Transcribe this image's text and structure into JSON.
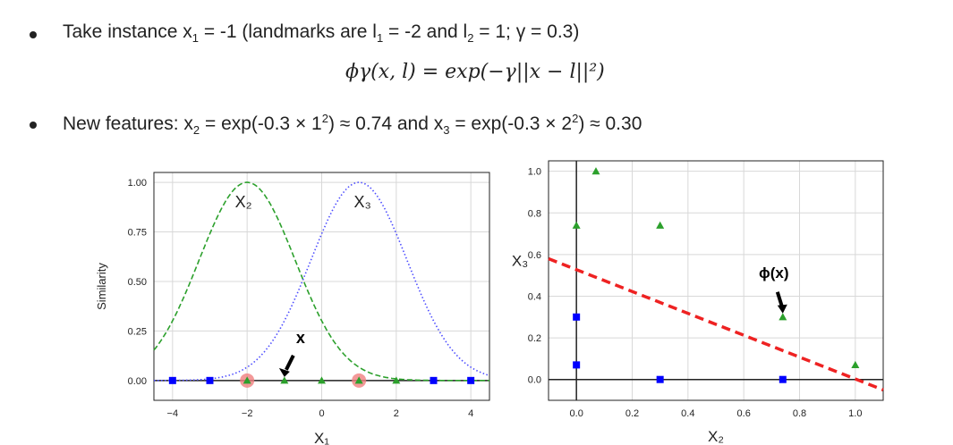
{
  "bullet1": {
    "t1": "Take instance x",
    "s1": "1",
    "t2": " = -1 (landmarks are l",
    "s2": "1",
    "t3": " = -2 and l",
    "s3": "2",
    "t4": " = 1; γ = 0.3)"
  },
  "formula": "ϕγ(x, l) = exp(−γ||x − l||²)",
  "bullet2": {
    "t1": "New features: x",
    "s1": "2",
    "t2": " = exp(-0.3 × 1",
    "p1": "2",
    "t3": ") ≈ 0.74 and x",
    "s2": "3",
    "t4": " = exp(-0.3 × 2",
    "p2": "2",
    "t5": ") ≈ 0.30"
  },
  "chart_data": [
    {
      "type": "line",
      "xlabel": "X₁",
      "ylabel": "Similarity",
      "xlim": [
        -4.5,
        4.5
      ],
      "ylim": [
        -0.1,
        1.05
      ],
      "xticks": [
        -4,
        -2,
        0,
        2,
        4
      ],
      "yticks": [
        0.0,
        0.25,
        0.5,
        0.75,
        1.0
      ],
      "grid": true,
      "gamma": 0.3,
      "series": [
        {
          "name": "X₂",
          "landmark": -2,
          "style": "dashed",
          "color": "#2ca02c"
        },
        {
          "name": "X₃",
          "landmark": 1,
          "style": "dotted",
          "color": "#4d4dff"
        }
      ],
      "points_square": [
        -4,
        -3,
        3,
        4
      ],
      "points_triangle": [
        -2,
        -1,
        0,
        1,
        2
      ],
      "landmarks": [
        -2,
        1
      ],
      "annotation": {
        "text": "x",
        "point": [
          -1,
          0
        ]
      }
    },
    {
      "type": "scatter",
      "xlabel": "X₂",
      "ylabel": "X₃",
      "xlim": [
        -0.1,
        1.1
      ],
      "ylim": [
        -0.1,
        1.05
      ],
      "xticks": [
        0.0,
        0.2,
        0.4,
        0.6,
        0.8,
        1.0
      ],
      "yticks": [
        0.0,
        0.2,
        0.4,
        0.6,
        0.8,
        1.0
      ],
      "grid": true,
      "squares": [
        [
          0.0,
          0.3
        ],
        [
          0.0,
          0.07
        ],
        [
          0.3,
          0.0
        ],
        [
          0.74,
          0.0
        ]
      ],
      "triangles": [
        [
          0.07,
          1.0
        ],
        [
          0.0,
          0.74
        ],
        [
          0.3,
          0.74
        ],
        [
          0.74,
          0.3
        ],
        [
          1.0,
          0.07
        ]
      ],
      "decision_line": [
        [
          -0.1,
          0.58
        ],
        [
          1.1,
          -0.05
        ]
      ],
      "annotation": {
        "text": "ϕ(x)",
        "point": [
          0.74,
          0.3
        ]
      }
    }
  ],
  "colors": {
    "green": "#2ca02c",
    "blue": "#0000ff",
    "red": "#ee2222",
    "landmark": "#f08080"
  }
}
